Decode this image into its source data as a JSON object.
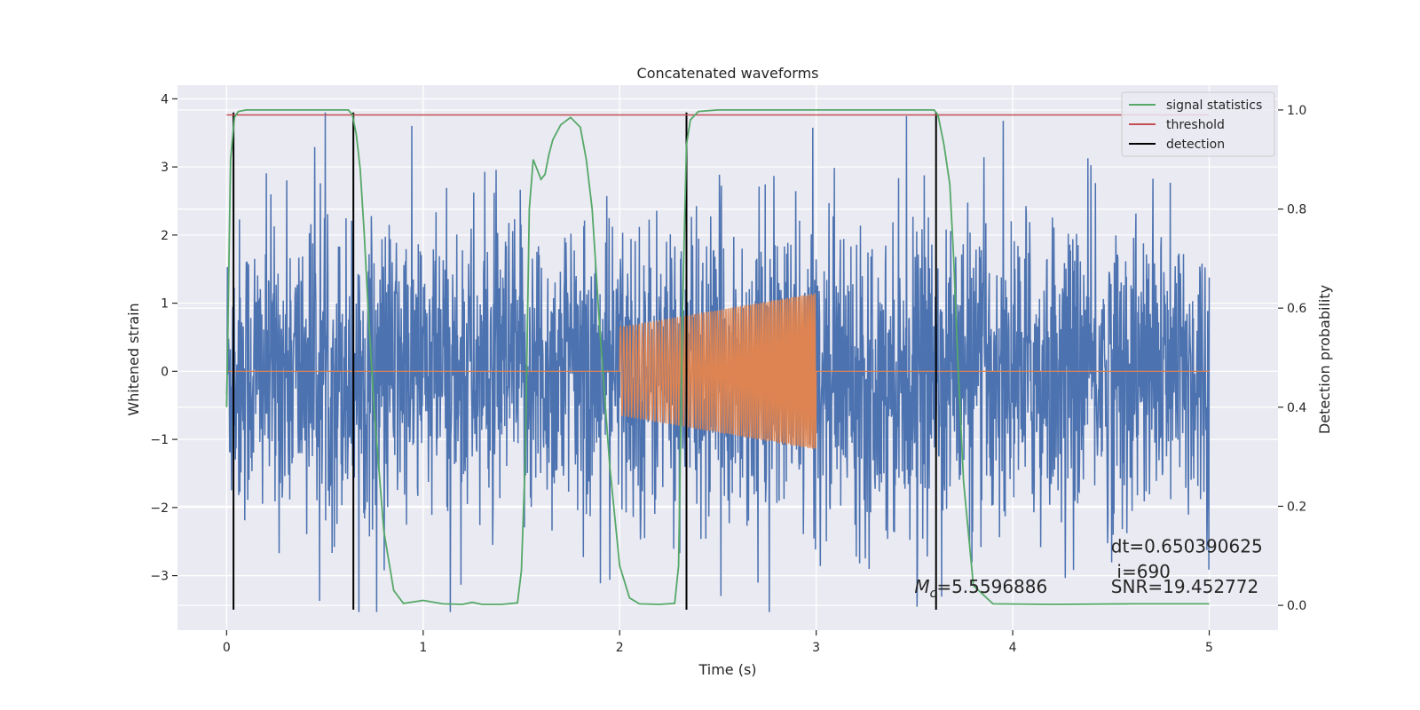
{
  "chart_data": {
    "type": "line",
    "title": "Concatenated waveforms",
    "xlabel": "Time (s)",
    "ylabel": "Whitened strain",
    "y2label": "Detection probability",
    "xlim": [
      -0.25,
      5.35
    ],
    "ylim": [
      -3.8,
      4.2
    ],
    "y2lim": [
      -0.05,
      1.05
    ],
    "x_ticks": [
      0,
      1,
      2,
      3,
      4,
      5
    ],
    "y_ticks": [
      -3,
      -2,
      -1,
      0,
      1,
      2,
      3,
      4
    ],
    "y2_ticks": [
      0.0,
      0.2,
      0.4,
      0.6,
      0.8,
      1.0
    ],
    "x_tick_labels": [
      "0",
      "1",
      "2",
      "3",
      "4",
      "5"
    ],
    "y_tick_labels": [
      "−3",
      "−2",
      "−1",
      "0",
      "1",
      "2",
      "3",
      "4"
    ],
    "y2_tick_labels": [
      "0.0",
      "0.2",
      "0.4",
      "0.6",
      "0.8",
      "1.0"
    ],
    "grid": true,
    "legend_position": "top-right",
    "colors": {
      "noise": "#4c72b0",
      "template": "#dd8452",
      "signal_statistics": "#55a868",
      "threshold": "#c44e52",
      "detection": "#000000",
      "axes_bg": "#eaeaf2",
      "grid": "#ffffff"
    },
    "series": [
      {
        "name": "signal statistics",
        "axis": "right",
        "x": [
          0,
          0.02,
          0.04,
          0.06,
          0.1,
          0.2,
          0.4,
          0.62,
          0.64,
          0.66,
          0.68,
          0.7,
          0.72,
          0.75,
          0.8,
          0.85,
          0.9,
          1.0,
          1.1,
          1.2,
          1.25,
          1.3,
          1.4,
          1.48,
          1.5,
          1.52,
          1.54,
          1.56,
          1.58,
          1.6,
          1.62,
          1.64,
          1.66,
          1.7,
          1.75,
          1.8,
          1.83,
          1.86,
          1.9,
          1.95,
          2.0,
          2.05,
          2.1,
          2.2,
          2.28,
          2.3,
          2.32,
          2.34,
          2.36,
          2.4,
          2.5,
          3.0,
          3.5,
          3.6,
          3.62,
          3.65,
          3.68,
          3.7,
          3.72,
          3.75,
          3.8,
          3.9,
          4.2,
          4.6,
          5.0
        ],
        "y": [
          0.4,
          0.9,
          0.985,
          0.997,
          1.0,
          1.0,
          1.0,
          1.0,
          0.99,
          0.95,
          0.88,
          0.75,
          0.6,
          0.4,
          0.15,
          0.03,
          0.004,
          0.01,
          0.003,
          0.002,
          0.006,
          0.002,
          0.002,
          0.005,
          0.07,
          0.3,
          0.8,
          0.9,
          0.88,
          0.86,
          0.87,
          0.91,
          0.94,
          0.97,
          0.985,
          0.965,
          0.9,
          0.8,
          0.55,
          0.28,
          0.08,
          0.015,
          0.003,
          0.002,
          0.004,
          0.08,
          0.6,
          0.93,
          0.98,
          0.997,
          1.0,
          1.0,
          1.0,
          1.0,
          0.99,
          0.93,
          0.85,
          0.7,
          0.5,
          0.25,
          0.04,
          0.003,
          0.002,
          0.003,
          0.003
        ]
      },
      {
        "name": "threshold",
        "axis": "right",
        "x": [
          0,
          5
        ],
        "y": [
          0.99,
          0.99
        ]
      },
      {
        "name": "detection",
        "axis": "left",
        "vlines_x": [
          0.035,
          0.645,
          2.34,
          3.61
        ],
        "ymin": -3.5,
        "ymax": 3.8
      }
    ],
    "noise_envelope": {
      "x_range": [
        0,
        5
      ],
      "typical_amplitude": 2.2,
      "max_amplitude": 3.8
    },
    "template_waveform": {
      "x_range": [
        2.0,
        3.0
      ],
      "amplitude_start": 0.65,
      "amplitude_end": 1.15
    },
    "annotations": [
      {
        "text": "dt=0.650390625",
        "x": 4.5,
        "y": -2.66
      },
      {
        "text": "i=690",
        "x": 4.53,
        "y": -3.03
      },
      {
        "text": "SNR=19.452772",
        "x": 4.5,
        "y": -3.25
      },
      {
        "mathvar": "M",
        "sub": "c",
        "text": "=5.5596886",
        "x": 3.5,
        "y": -3.25
      }
    ]
  }
}
